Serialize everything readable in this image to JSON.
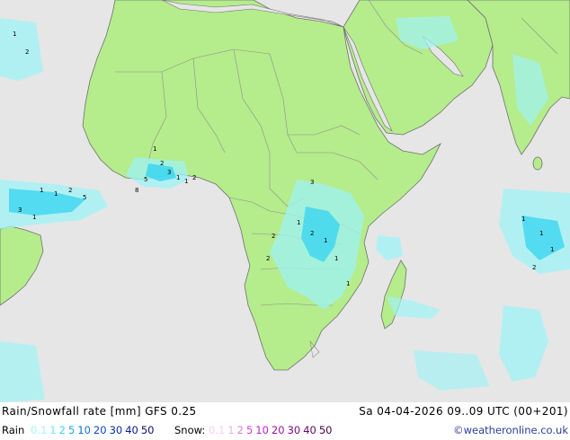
{
  "map": {
    "colors": {
      "ocean": "#e6e6e6",
      "land": "#b5ec8c",
      "border": "#8e8e8e",
      "coast": "#707070",
      "precip_light": "#9ff3f5",
      "precip_medium": "#3bd6f0",
      "precip_strong": "#19b2e6",
      "labels": "#000000"
    },
    "precip_labels": [
      "1",
      "2",
      "3",
      "5",
      "8",
      "1",
      "1",
      "2",
      "1",
      "1",
      "2",
      "5",
      "3",
      "1",
      "1",
      "2",
      "1",
      "1",
      "1",
      "2",
      "2",
      "3",
      "1",
      "2",
      "1",
      "1",
      "1",
      "2"
    ]
  },
  "footer": {
    "title": "Rain/Snowfall rate [mm] GFS 0.25",
    "timestamp": "Sa 04-04-2026 09..09 UTC (00+201)",
    "rain_label": "Rain",
    "rain_scale": [
      {
        "v": "0.1",
        "c": "#a8f4f4"
      },
      {
        "v": "1",
        "c": "#70e8f0"
      },
      {
        "v": "2",
        "c": "#3dd0f0"
      },
      {
        "v": "5",
        "c": "#1aa8e8"
      },
      {
        "v": "10",
        "c": "#1070d8"
      },
      {
        "v": "20",
        "c": "#0c46c8"
      },
      {
        "v": "30",
        "c": "#0a2aa8"
      },
      {
        "v": "40",
        "c": "#0a1a88"
      },
      {
        "v": "50",
        "c": "#080f68"
      }
    ],
    "snow_label": "Snow:",
    "snow_scale": [
      {
        "v": "0.1",
        "c": "#f5d0f5"
      },
      {
        "v": "1",
        "c": "#eab0ea"
      },
      {
        "v": "2",
        "c": "#e07de0"
      },
      {
        "v": "5",
        "c": "#d040d0"
      },
      {
        "v": "10",
        "c": "#c020c0"
      },
      {
        "v": "20",
        "c": "#a010a0"
      },
      {
        "v": "30",
        "c": "#800880"
      },
      {
        "v": "40",
        "c": "#600660"
      },
      {
        "v": "50",
        "c": "#480448"
      }
    ],
    "credit": "©weatheronline.co.uk"
  }
}
